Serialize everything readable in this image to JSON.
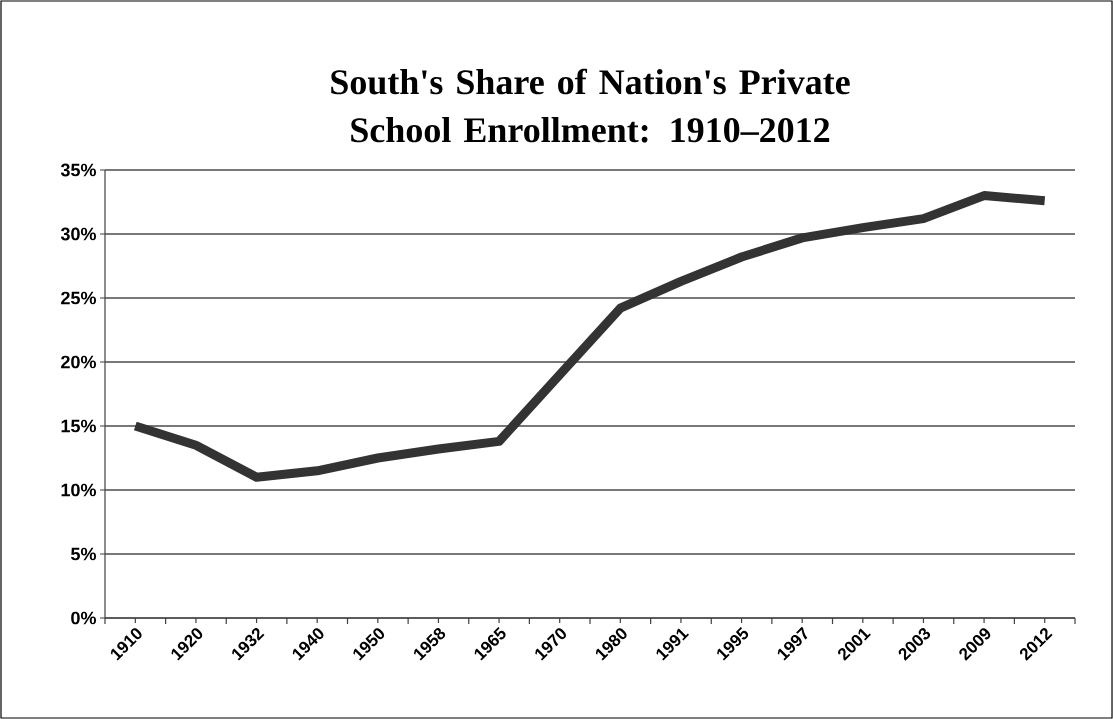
{
  "chart_data": {
    "type": "line",
    "title": "South's Share of Nation's Private School Enrollment: 1910–2012",
    "categories": [
      "1910",
      "1920",
      "1932",
      "1940",
      "1950",
      "1958",
      "1965",
      "1970",
      "1980",
      "1991",
      "1995",
      "1997",
      "2001",
      "2003",
      "2009",
      "2012"
    ],
    "series": [
      {
        "color": "#333333",
        "values": [
          15,
          13.5,
          11,
          11.5,
          12.5,
          13.2,
          13.8,
          19,
          24.2,
          26.3,
          28.2,
          29.7,
          30.5,
          31.2,
          33,
          32.6
        ]
      }
    ],
    "ylim": [
      0,
      35
    ],
    "yticks": [
      {
        "value": 0,
        "label": "0%"
      },
      {
        "value": 5,
        "label": "5%"
      },
      {
        "value": 10,
        "label": "10%"
      },
      {
        "value": 15,
        "label": "15%"
      },
      {
        "value": 20,
        "label": "20%"
      },
      {
        "value": 25,
        "label": "25%"
      },
      {
        "value": 30,
        "label": "30%"
      },
      {
        "value": 35,
        "label": "35%"
      }
    ],
    "grid": "y",
    "legend": false,
    "marker": "none",
    "line_style": "solid"
  }
}
